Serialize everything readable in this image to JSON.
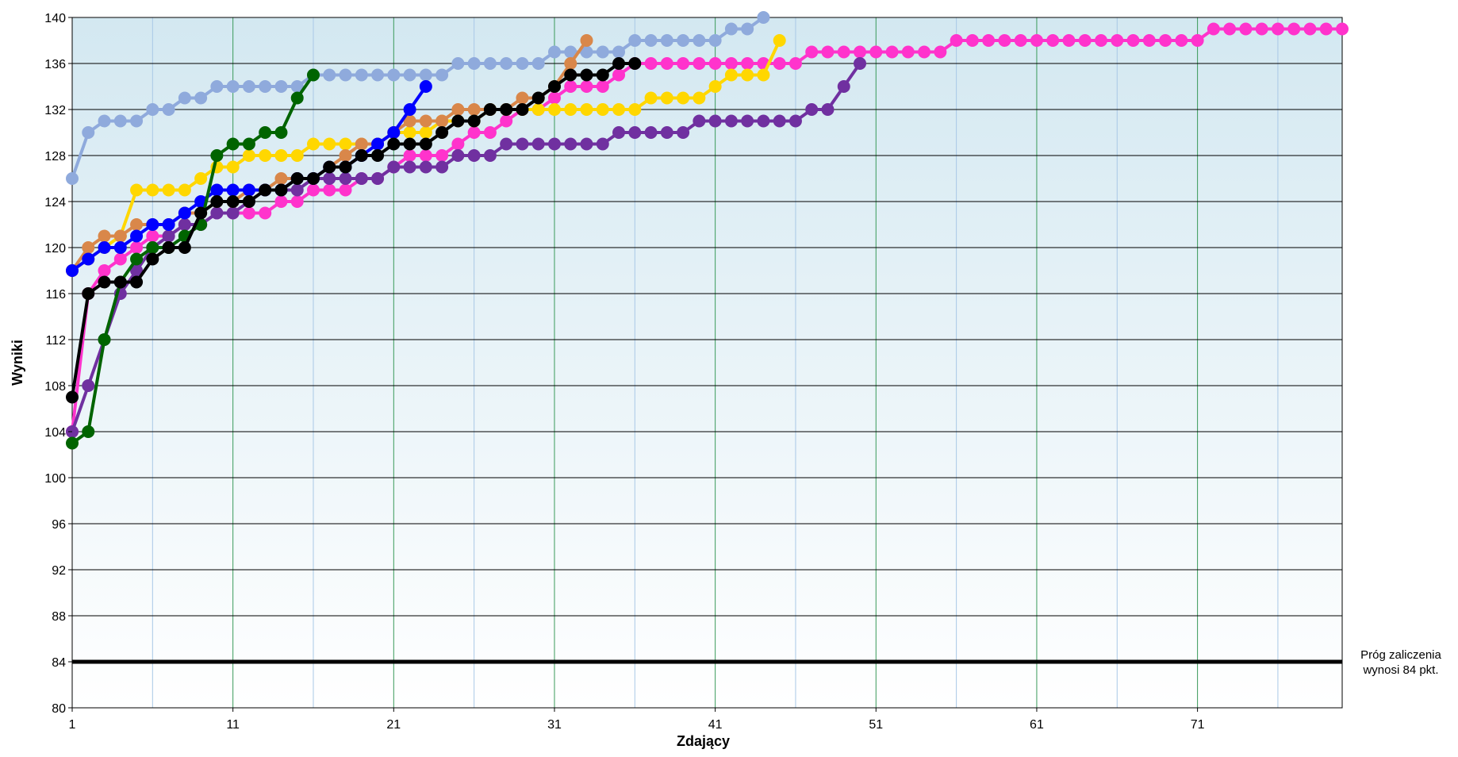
{
  "chart_data": {
    "type": "line",
    "xlabel": "Zdający",
    "ylabel": "Wyniki",
    "xlim": [
      1,
      80
    ],
    "ylim": [
      80,
      140
    ],
    "x_ticks": [
      1,
      11,
      21,
      31,
      41,
      51,
      61,
      71
    ],
    "x_tick_labels": [
      "1",
      "11",
      "21",
      "31",
      "41",
      "51",
      "61",
      "71"
    ],
    "y_ticks": [
      80,
      84,
      88,
      92,
      96,
      100,
      104,
      108,
      112,
      116,
      120,
      124,
      128,
      132,
      136,
      140
    ],
    "y_tick_labels": [
      "80",
      "84",
      "88",
      "92",
      "96",
      "100",
      "104",
      "108",
      "112",
      "116",
      "120",
      "124",
      "128",
      "132",
      "136",
      "140"
    ],
    "grid": true,
    "threshold": {
      "value": 84,
      "label_line1": "Próg zaliczenia",
      "label_line2": "wynosi 84 pkt.",
      "color": "#000000"
    },
    "series": [
      {
        "color": "#ff33cc",
        "x": [
          1,
          2,
          3,
          4,
          5,
          6,
          7,
          8,
          9,
          10,
          11,
          12,
          13,
          14,
          15,
          16,
          17,
          18,
          19,
          20,
          21,
          22,
          23,
          24,
          25,
          26,
          27,
          28,
          29,
          30,
          31,
          32,
          33,
          34,
          35,
          36,
          37,
          38,
          39,
          40,
          41,
          42,
          43,
          44,
          45,
          46,
          47,
          48,
          49,
          50,
          51,
          52,
          53,
          54,
          55,
          56,
          57,
          58,
          59,
          60,
          61,
          62,
          63,
          64,
          65,
          66,
          67,
          68,
          69,
          70,
          71,
          72,
          73,
          74,
          75,
          76,
          77,
          78,
          79,
          80
        ],
        "y": [
          104,
          116,
          118,
          119,
          120,
          121,
          121,
          122,
          122,
          123,
          123,
          123,
          123,
          124,
          124,
          125,
          125,
          125,
          126,
          126,
          127,
          128,
          128,
          128,
          129,
          130,
          130,
          131,
          132,
          132,
          133,
          134,
          134,
          134,
          135,
          136,
          136,
          136,
          136,
          136,
          136,
          136,
          136,
          136,
          136,
          136,
          137,
          137,
          137,
          137,
          137,
          137,
          137,
          137,
          137,
          138,
          138,
          138,
          138,
          138,
          138,
          138,
          138,
          138,
          138,
          138,
          138,
          138,
          138,
          138,
          138,
          139,
          139,
          139,
          139,
          139,
          139,
          139,
          139,
          139
        ]
      },
      {
        "color": "#7030a0",
        "x": [
          1,
          2,
          3,
          4,
          5,
          6,
          7,
          8,
          9,
          10,
          11,
          12,
          13,
          14,
          15,
          16,
          17,
          18,
          19,
          20,
          21,
          22,
          23,
          24,
          25,
          26,
          27,
          28,
          29,
          30,
          31,
          32,
          33,
          34,
          35,
          36,
          37,
          38,
          39,
          40,
          41,
          42,
          43,
          44,
          45,
          46,
          47,
          48,
          49,
          50
        ],
        "y": [
          104,
          108,
          112,
          116,
          118,
          120,
          121,
          122,
          122,
          123,
          123,
          124,
          125,
          125,
          125,
          126,
          126,
          126,
          126,
          126,
          127,
          127,
          127,
          127,
          128,
          128,
          128,
          129,
          129,
          129,
          129,
          129,
          129,
          129,
          130,
          130,
          130,
          130,
          130,
          131,
          131,
          131,
          131,
          131,
          131,
          131,
          132,
          132,
          134,
          136
        ]
      },
      {
        "color": "#ffd700",
        "x": [
          1,
          2,
          3,
          4,
          5,
          6,
          7,
          8,
          9,
          10,
          11,
          12,
          13,
          14,
          15,
          16,
          17,
          18,
          19,
          20,
          21,
          22,
          23,
          24,
          25,
          26,
          27,
          28,
          29,
          30,
          31,
          32,
          33,
          34,
          35,
          36,
          37,
          38,
          39,
          40,
          41,
          42,
          43,
          44,
          45
        ],
        "y": [
          118,
          119,
          120,
          121,
          125,
          125,
          125,
          125,
          126,
          127,
          127,
          128,
          128,
          128,
          128,
          129,
          129,
          129,
          129,
          129,
          130,
          130,
          130,
          131,
          131,
          131,
          132,
          132,
          132,
          132,
          132,
          132,
          132,
          132,
          132,
          132,
          133,
          133,
          133,
          133,
          134,
          135,
          135,
          135,
          138
        ]
      },
      {
        "color": "#8faadc",
        "x": [
          1,
          2,
          3,
          4,
          5,
          6,
          7,
          8,
          9,
          10,
          11,
          12,
          13,
          14,
          15,
          16,
          17,
          18,
          19,
          20,
          21,
          22,
          23,
          24,
          25,
          26,
          27,
          28,
          29,
          30,
          31,
          32,
          33,
          34,
          35,
          36,
          37,
          38,
          39,
          40,
          41,
          42,
          43,
          44
        ],
        "y": [
          126,
          130,
          131,
          131,
          131,
          132,
          132,
          133,
          133,
          134,
          134,
          134,
          134,
          134,
          134,
          135,
          135,
          135,
          135,
          135,
          135,
          135,
          135,
          135,
          136,
          136,
          136,
          136,
          136,
          136,
          137,
          137,
          137,
          137,
          137,
          138,
          138,
          138,
          138,
          138,
          138,
          139,
          139,
          140
        ]
      },
      {
        "color": "#d9874a",
        "x": [
          1,
          2,
          3,
          4,
          5,
          6,
          7,
          8,
          9,
          10,
          11,
          12,
          13,
          14,
          15,
          16,
          17,
          18,
          19,
          20,
          21,
          22,
          23,
          24,
          25,
          26,
          27,
          28,
          29,
          30,
          31,
          32,
          33
        ],
        "y": [
          118,
          120,
          121,
          121,
          122,
          122,
          122,
          123,
          123,
          124,
          124,
          125,
          125,
          126,
          126,
          126,
          127,
          128,
          129,
          129,
          130,
          131,
          131,
          131,
          132,
          132,
          132,
          132,
          133,
          133,
          134,
          136,
          138
        ]
      },
      {
        "color": "#0000ff",
        "x": [
          1,
          2,
          3,
          4,
          5,
          6,
          7,
          8,
          9,
          10,
          11,
          12,
          13,
          14,
          15,
          16,
          17,
          18,
          19,
          20,
          21,
          22,
          23
        ],
        "y": [
          118,
          119,
          120,
          120,
          121,
          122,
          122,
          123,
          124,
          125,
          125,
          125,
          125,
          125,
          126,
          126,
          127,
          127,
          128,
          129,
          130,
          132,
          134
        ]
      },
      {
        "color": "#006400",
        "x": [
          1,
          2,
          3,
          4,
          5,
          6,
          7,
          8,
          9,
          10,
          11,
          12,
          13,
          14,
          15,
          16
        ],
        "y": [
          103,
          104,
          112,
          117,
          119,
          120,
          120,
          121,
          122,
          128,
          129,
          129,
          130,
          130,
          133,
          135
        ]
      },
      {
        "color": "#000000",
        "x": [
          1,
          2,
          3,
          4,
          5,
          6,
          7,
          8,
          9,
          10,
          11,
          12,
          13,
          14,
          15,
          16,
          17,
          18,
          19,
          20,
          21,
          22,
          23,
          24,
          25,
          26,
          27,
          28,
          29,
          30,
          31,
          32,
          33,
          34,
          35,
          36
        ],
        "y": [
          107,
          116,
          117,
          117,
          117,
          119,
          120,
          120,
          123,
          124,
          124,
          124,
          125,
          125,
          126,
          126,
          127,
          127,
          128,
          128,
          129,
          129,
          129,
          130,
          131,
          131,
          132,
          132,
          132,
          133,
          134,
          135,
          135,
          135,
          136,
          136
        ]
      }
    ]
  }
}
